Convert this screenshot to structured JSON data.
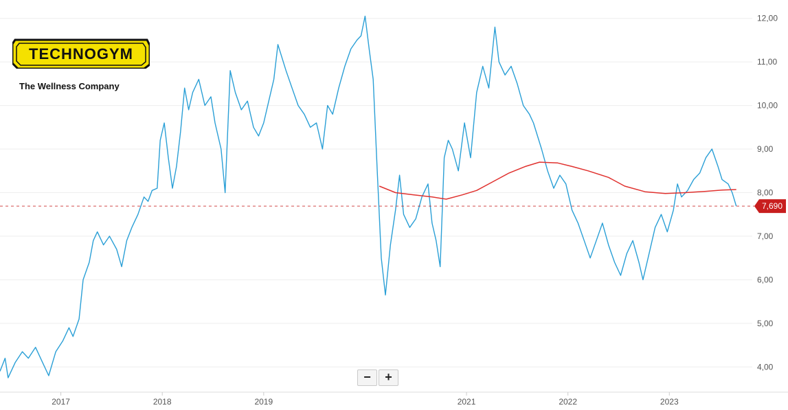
{
  "logo": {
    "brand": "TECHNOGYM",
    "tagline": "The Wellness Company"
  },
  "colors": {
    "price_line": "#2a9fd6",
    "moving_average": "#e0312e",
    "current_price_marker": "#c81e1e",
    "grid": "#eeeeee"
  },
  "zoom_controls": {
    "zoom_out": "−",
    "zoom_in": "+"
  },
  "chart_data": {
    "type": "line",
    "title": "",
    "xlabel": "",
    "ylabel": "",
    "x_ticks": [
      "2017",
      "2018",
      "2019",
      "2021",
      "2022",
      "2023"
    ],
    "y_ticks": [
      "4,00",
      "5,00",
      "6,00",
      "7,00",
      "8,00",
      "9,00",
      "10,00",
      "11,00",
      "12,00"
    ],
    "ylim": [
      3.5,
      12.2
    ],
    "xlim": [
      2016.4,
      2023.75
    ],
    "grid": "horizontal",
    "y_axis_position": "right",
    "current_value": 7.69,
    "current_value_label": "7,690",
    "series": [
      {
        "role": "price",
        "points": [
          [
            2016.4,
            3.9
          ],
          [
            2016.45,
            4.2
          ],
          [
            2016.48,
            3.75
          ],
          [
            2016.55,
            4.1
          ],
          [
            2016.62,
            4.35
          ],
          [
            2016.68,
            4.2
          ],
          [
            2016.75,
            4.45
          ],
          [
            2016.82,
            4.1
          ],
          [
            2016.88,
            3.8
          ],
          [
            2016.95,
            4.35
          ],
          [
            2017.02,
            4.6
          ],
          [
            2017.08,
            4.9
          ],
          [
            2017.12,
            4.7
          ],
          [
            2017.18,
            5.1
          ],
          [
            2017.22,
            6.0
          ],
          [
            2017.28,
            6.4
          ],
          [
            2017.32,
            6.9
          ],
          [
            2017.36,
            7.1
          ],
          [
            2017.42,
            6.8
          ],
          [
            2017.48,
            7.0
          ],
          [
            2017.55,
            6.7
          ],
          [
            2017.6,
            6.3
          ],
          [
            2017.65,
            6.9
          ],
          [
            2017.7,
            7.2
          ],
          [
            2017.76,
            7.5
          ],
          [
            2017.82,
            7.9
          ],
          [
            2017.86,
            7.8
          ],
          [
            2017.9,
            8.05
          ],
          [
            2017.95,
            8.1
          ],
          [
            2017.98,
            9.2
          ],
          [
            2018.02,
            9.6
          ],
          [
            2018.06,
            8.8
          ],
          [
            2018.1,
            8.1
          ],
          [
            2018.14,
            8.6
          ],
          [
            2018.18,
            9.4
          ],
          [
            2018.22,
            10.4
          ],
          [
            2018.26,
            9.9
          ],
          [
            2018.3,
            10.3
          ],
          [
            2018.36,
            10.6
          ],
          [
            2018.42,
            10.0
          ],
          [
            2018.48,
            10.2
          ],
          [
            2018.52,
            9.6
          ],
          [
            2018.58,
            9.0
          ],
          [
            2018.62,
            8.0
          ],
          [
            2018.67,
            10.8
          ],
          [
            2018.72,
            10.3
          ],
          [
            2018.78,
            9.9
          ],
          [
            2018.84,
            10.1
          ],
          [
            2018.9,
            9.5
          ],
          [
            2018.95,
            9.3
          ],
          [
            2019.0,
            9.6
          ],
          [
            2019.05,
            10.1
          ],
          [
            2019.1,
            10.6
          ],
          [
            2019.14,
            11.4
          ],
          [
            2019.18,
            11.1
          ],
          [
            2019.22,
            10.8
          ],
          [
            2019.28,
            10.4
          ],
          [
            2019.34,
            10.0
          ],
          [
            2019.4,
            9.8
          ],
          [
            2019.46,
            9.5
          ],
          [
            2019.52,
            9.6
          ],
          [
            2019.58,
            9.0
          ],
          [
            2019.63,
            10.0
          ],
          [
            2019.68,
            9.8
          ],
          [
            2019.74,
            10.4
          ],
          [
            2019.8,
            10.9
          ],
          [
            2019.86,
            11.3
          ],
          [
            2019.92,
            11.5
          ],
          [
            2019.96,
            11.6
          ],
          [
            2020.0,
            12.05
          ],
          [
            2020.04,
            11.3
          ],
          [
            2020.08,
            10.6
          ],
          [
            2020.12,
            8.5
          ],
          [
            2020.16,
            6.5
          ],
          [
            2020.2,
            5.65
          ],
          [
            2020.25,
            6.8
          ],
          [
            2020.3,
            7.6
          ],
          [
            2020.34,
            8.4
          ],
          [
            2020.38,
            7.5
          ],
          [
            2020.44,
            7.2
          ],
          [
            2020.5,
            7.4
          ],
          [
            2020.56,
            7.9
          ],
          [
            2020.62,
            8.2
          ],
          [
            2020.66,
            7.3
          ],
          [
            2020.7,
            6.9
          ],
          [
            2020.74,
            6.3
          ],
          [
            2020.78,
            8.8
          ],
          [
            2020.82,
            9.2
          ],
          [
            2020.86,
            9.0
          ],
          [
            2020.92,
            8.5
          ],
          [
            2020.98,
            9.6
          ],
          [
            2021.04,
            8.8
          ],
          [
            2021.1,
            10.3
          ],
          [
            2021.16,
            10.9
          ],
          [
            2021.22,
            10.4
          ],
          [
            2021.28,
            11.8
          ],
          [
            2021.32,
            11.0
          ],
          [
            2021.38,
            10.7
          ],
          [
            2021.44,
            10.9
          ],
          [
            2021.5,
            10.5
          ],
          [
            2021.56,
            10.0
          ],
          [
            2021.62,
            9.8
          ],
          [
            2021.66,
            9.6
          ],
          [
            2021.7,
            9.3
          ],
          [
            2021.74,
            9.0
          ],
          [
            2021.8,
            8.5
          ],
          [
            2021.86,
            8.1
          ],
          [
            2021.92,
            8.4
          ],
          [
            2021.98,
            8.2
          ],
          [
            2022.04,
            7.6
          ],
          [
            2022.1,
            7.3
          ],
          [
            2022.16,
            6.9
          ],
          [
            2022.22,
            6.5
          ],
          [
            2022.28,
            6.9
          ],
          [
            2022.34,
            7.3
          ],
          [
            2022.4,
            6.8
          ],
          [
            2022.46,
            6.4
          ],
          [
            2022.52,
            6.1
          ],
          [
            2022.58,
            6.6
          ],
          [
            2022.64,
            6.9
          ],
          [
            2022.7,
            6.4
          ],
          [
            2022.74,
            6.0
          ],
          [
            2022.8,
            6.6
          ],
          [
            2022.86,
            7.2
          ],
          [
            2022.92,
            7.5
          ],
          [
            2022.98,
            7.1
          ],
          [
            2023.04,
            7.6
          ],
          [
            2023.08,
            8.2
          ],
          [
            2023.12,
            7.9
          ],
          [
            2023.18,
            8.05
          ],
          [
            2023.24,
            8.3
          ],
          [
            2023.3,
            8.45
          ],
          [
            2023.36,
            8.8
          ],
          [
            2023.42,
            9.0
          ],
          [
            2023.48,
            8.6
          ],
          [
            2023.52,
            8.3
          ],
          [
            2023.58,
            8.2
          ],
          [
            2023.62,
            8.0
          ],
          [
            2023.66,
            7.69
          ]
        ]
      },
      {
        "role": "moving_average",
        "points": [
          [
            2020.14,
            8.15
          ],
          [
            2020.3,
            8.0
          ],
          [
            2020.48,
            7.95
          ],
          [
            2020.66,
            7.9
          ],
          [
            2020.8,
            7.85
          ],
          [
            2020.96,
            7.95
          ],
          [
            2021.1,
            8.05
          ],
          [
            2021.26,
            8.25
          ],
          [
            2021.42,
            8.45
          ],
          [
            2021.58,
            8.6
          ],
          [
            2021.72,
            8.7
          ],
          [
            2021.9,
            8.68
          ],
          [
            2022.04,
            8.6
          ],
          [
            2022.2,
            8.5
          ],
          [
            2022.4,
            8.35
          ],
          [
            2022.56,
            8.15
          ],
          [
            2022.76,
            8.02
          ],
          [
            2022.96,
            7.98
          ],
          [
            2023.16,
            8.0
          ],
          [
            2023.36,
            8.03
          ],
          [
            2023.52,
            8.06
          ],
          [
            2023.66,
            8.07
          ]
        ]
      }
    ]
  }
}
